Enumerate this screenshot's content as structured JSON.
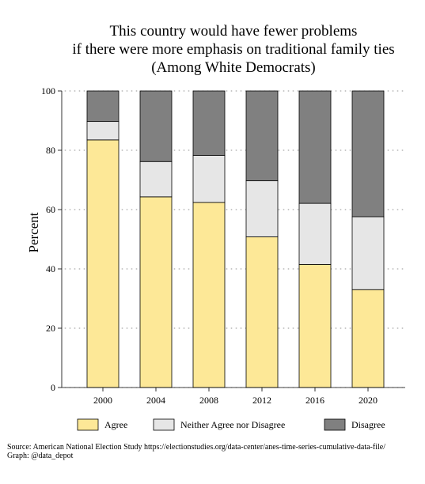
{
  "chart_data": {
    "type": "bar",
    "stacked": true,
    "title": [
      "This country would have fewer problems",
      "if there were more emphasis on traditional family ties",
      "(Among White Democrats)"
    ],
    "ylabel": "Percent",
    "xlabel": "",
    "ylim": [
      0,
      100
    ],
    "yticks": [
      0,
      20,
      40,
      60,
      80,
      100
    ],
    "categories": [
      "2000",
      "2004",
      "2008",
      "2012",
      "2016",
      "2020"
    ],
    "series": [
      {
        "name": "Agree",
        "color": "#fde897",
        "values": [
          83.5,
          64.3,
          62.4,
          50.8,
          41.5,
          33.0
        ]
      },
      {
        "name": "Neither Agree nor Disagree",
        "color": "#e6e6e6",
        "values": [
          6.2,
          11.9,
          15.9,
          18.9,
          20.6,
          24.6
        ]
      },
      {
        "name": "Disagree",
        "color": "#808080",
        "values": [
          10.3,
          23.8,
          21.7,
          30.3,
          37.9,
          42.4
        ]
      }
    ],
    "grid": "dotted",
    "legend_position": "bottom",
    "source": [
      "Source: American National Election Study https://electionstudies.org/data-center/anes-time-series-cumulative-data-file/",
      "Graph: @data_depot"
    ]
  }
}
